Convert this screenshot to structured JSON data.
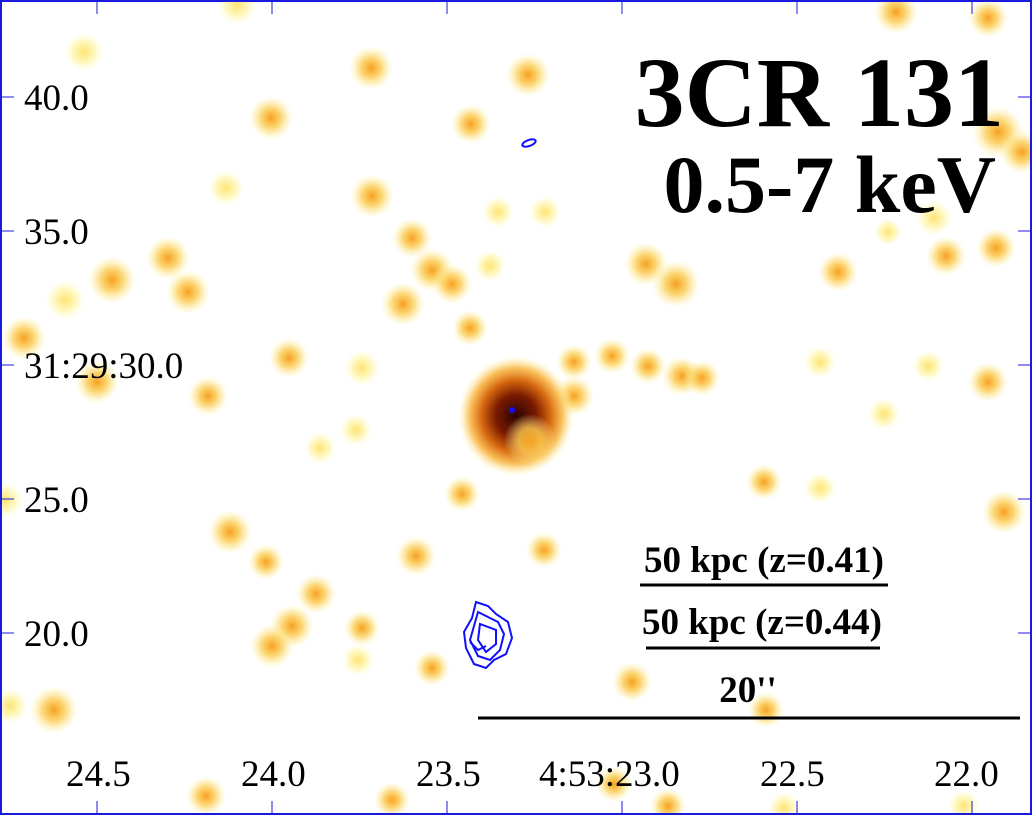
{
  "figure": {
    "title": "3CR 131",
    "band": "0.5-7 keV",
    "colors": {
      "frame": "#1a1adc",
      "contour": "#1010ff",
      "core": "#3a0800"
    }
  },
  "axes": {
    "dec_ticks": [
      "40.0",
      "35.0",
      "31:29:30.0",
      "25.0",
      "20.0"
    ],
    "ra_ticks": [
      "24.5",
      "24.0",
      "23.5",
      "4:53:23.0",
      "22.5",
      "22.0"
    ]
  },
  "scalebars": {
    "kpc_z041": "50 kpc (z=0.41)",
    "kpc_z044": "50 kpc (z=0.44)",
    "arcsec": "20''"
  }
}
